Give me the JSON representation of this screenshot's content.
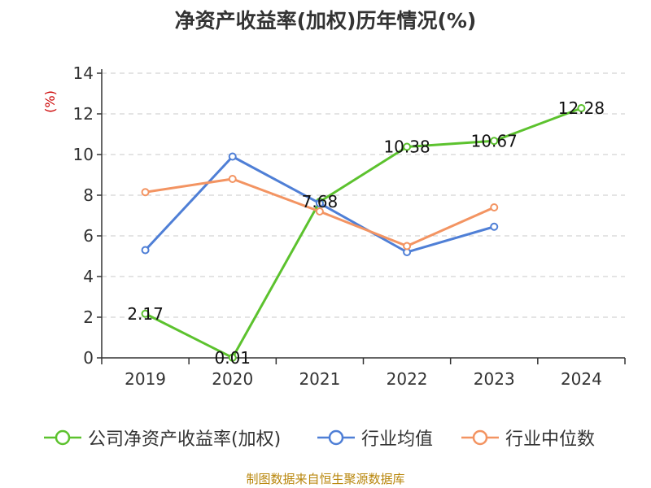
{
  "title": "净资产收益率(加权)历年情况(%)",
  "source": "制图数据来自恒生聚源数据库",
  "colors": {
    "axis": "#333333",
    "grid": "#c8c8c8",
    "ylabel": "#cc0000"
  },
  "chart_data": {
    "type": "line",
    "title": "净资产收益率(加权)历年情况(%)",
    "ylabel": "(%)",
    "xlabel": "",
    "categories": [
      "2019",
      "2020",
      "2021",
      "2022",
      "2023",
      "2024"
    ],
    "ylim": [
      0,
      14
    ],
    "yticks": [
      "0",
      "2",
      "4",
      "6",
      "8",
      "10",
      "12",
      "14"
    ],
    "grid": true,
    "legend_position": "bottom",
    "series": [
      {
        "name": "公司净资产收益率(加权)",
        "color": "#5cc22e",
        "values": [
          2.17,
          0.01,
          7.68,
          10.38,
          10.67,
          12.28
        ],
        "labels": [
          "2.17",
          "0.01",
          "7.68",
          "10.38",
          "10.67",
          "12.28"
        ]
      },
      {
        "name": "行业均值",
        "color": "#4f7fd6",
        "values": [
          5.3,
          9.9,
          7.6,
          5.2,
          6.45,
          null
        ],
        "labels": []
      },
      {
        "name": "行业中位数",
        "color": "#f39462",
        "values": [
          8.15,
          8.8,
          7.2,
          5.5,
          7.4,
          null
        ],
        "labels": []
      }
    ]
  }
}
